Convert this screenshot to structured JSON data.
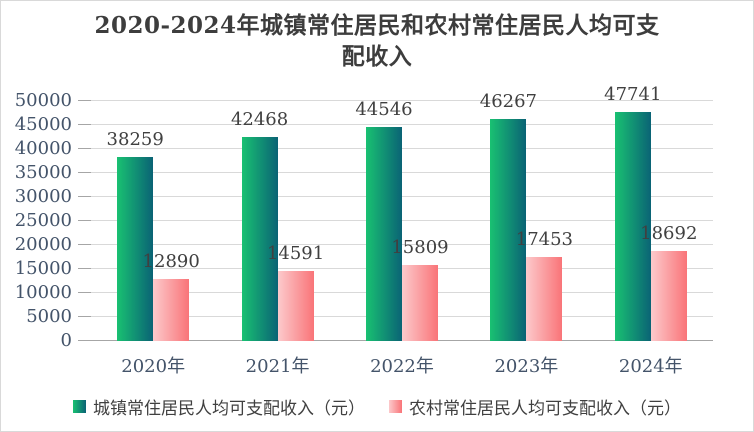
{
  "window": {
    "background": "#ffffff",
    "border_color": "#d9d9d9"
  },
  "title": {
    "lines": [
      "2020-2024年城镇常住居民和农村常住居民人均可支",
      "配收入"
    ]
  },
  "chart_data": {
    "type": "bar",
    "title": "2020-2024年城镇常住居民和农村常住居民人均可支配收入",
    "categories": [
      "2020年",
      "2021年",
      "2022年",
      "2023年",
      "2024年"
    ],
    "series": [
      {
        "name": "城镇常住居民人均可支配收入（元）",
        "values": [
          38259,
          42468,
          44546,
          46267,
          47741
        ],
        "gradient": [
          "#19c172",
          "#0a6375"
        ]
      },
      {
        "name": "农村常住居民人均可支配收入（元）",
        "values": [
          12890,
          14591,
          15809,
          17453,
          18692
        ],
        "gradient": [
          "#fccacc",
          "#f97478"
        ]
      }
    ],
    "ylim": [
      0,
      50000
    ],
    "ytick_step": 5000,
    "ytick_labels": [
      "0",
      "5000",
      "10000",
      "15000",
      "20000",
      "25000",
      "30000",
      "35000",
      "40000",
      "45000",
      "50000"
    ],
    "grid": true,
    "legend_position": "bottom",
    "colors": {
      "gridline": "#d9d9d9",
      "axis_line": "#a6a6a6",
      "axis_label": "#44546a",
      "value_label": "#404040",
      "title": "#3d3d3d",
      "legend_text": "#404040"
    }
  }
}
